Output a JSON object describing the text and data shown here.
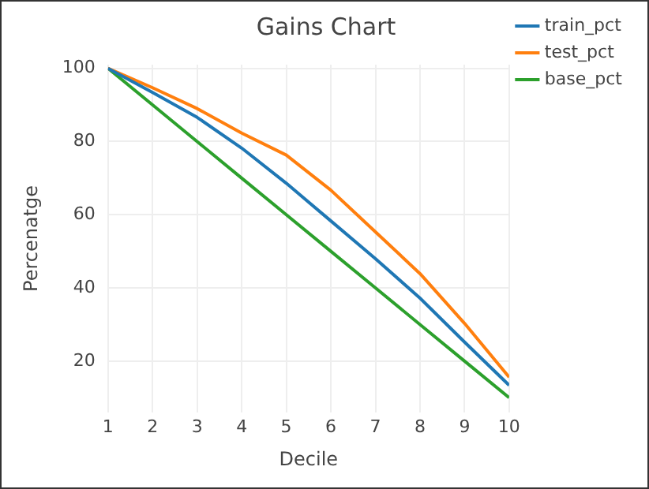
{
  "chart_data": {
    "type": "line",
    "title": "Gains Chart",
    "xlabel": "Decile",
    "ylabel": "Percenatge",
    "x": [
      1,
      2,
      3,
      4,
      5,
      6,
      7,
      8,
      9,
      10
    ],
    "series": [
      {
        "name": "train_pct",
        "color": "#1f77b4",
        "values": [
          100,
          93.4,
          86.6,
          78.2,
          68.6,
          58.3,
          48,
          37.2,
          25.2,
          13.4
        ]
      },
      {
        "name": "test_pct",
        "color": "#ff7f0e",
        "values": [
          100,
          94.7,
          89,
          82.3,
          76.3,
          66.7,
          55.3,
          43.9,
          30.3,
          15.6
        ]
      },
      {
        "name": "base_pct",
        "color": "#2ca02c",
        "values": [
          100,
          90,
          80,
          70,
          60,
          50,
          40,
          30,
          20,
          10
        ]
      }
    ],
    "xlim": [
      1,
      10
    ],
    "xticks": [
      1,
      2,
      3,
      4,
      5,
      6,
      7,
      8,
      9,
      10
    ],
    "ylim": [
      6,
      101
    ],
    "yticks": [
      20,
      40,
      60,
      80,
      100
    ],
    "grid": true,
    "legend": "top right",
    "marker": "none",
    "line_style": "solid"
  }
}
